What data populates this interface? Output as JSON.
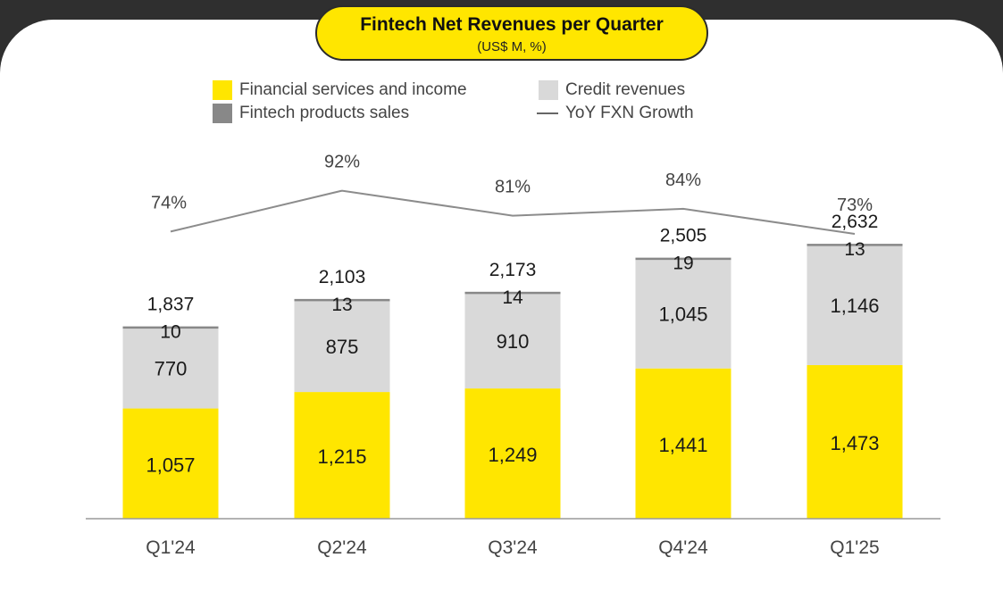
{
  "title": "Fintech Net Revenues per Quarter",
  "subtitle": "(US$ M, %)",
  "legend": {
    "financial": "Financial services and income",
    "credit": "Credit revenues",
    "products": "Fintech products sales",
    "growth": "YoY FXN Growth"
  },
  "colors": {
    "financial": "#ffe600",
    "credit": "#d9d9d9",
    "products": "#888888",
    "growth_line": "#8c8c8c",
    "background": "#2f2f2f"
  },
  "chart_data": {
    "type": "bar",
    "stacked": true,
    "categories": [
      "Q1'24",
      "Q2'24",
      "Q3'24",
      "Q4'24",
      "Q1'25"
    ],
    "series": [
      {
        "name": "Financial services and income",
        "key": "financial",
        "values": [
          1057,
          1215,
          1249,
          1441,
          1473
        ]
      },
      {
        "name": "Credit revenues",
        "key": "credit",
        "values": [
          770,
          875,
          910,
          1045,
          1146
        ]
      },
      {
        "name": "Fintech products sales",
        "key": "products",
        "values": [
          10,
          13,
          14,
          19,
          13
        ]
      }
    ],
    "value_labels": {
      "financial": [
        "1,057",
        "1,215",
        "1,249",
        "1,441",
        "1,473"
      ],
      "credit": [
        "770",
        "875",
        "910",
        "1,045",
        "1,146"
      ],
      "products": [
        "10",
        "13",
        "14",
        "19",
        "13"
      ]
    },
    "totals": [
      1837,
      2103,
      2173,
      2505,
      2632
    ],
    "total_labels": [
      "1,837",
      "2,103",
      "2,173",
      "2,505",
      "2,632"
    ],
    "line": {
      "name": "YoY FXN Growth",
      "values": [
        74,
        92,
        81,
        84,
        73
      ],
      "labels": [
        "74%",
        "92%",
        "81%",
        "84%",
        "73%"
      ]
    },
    "legend_position": "top",
    "grid": false
  }
}
